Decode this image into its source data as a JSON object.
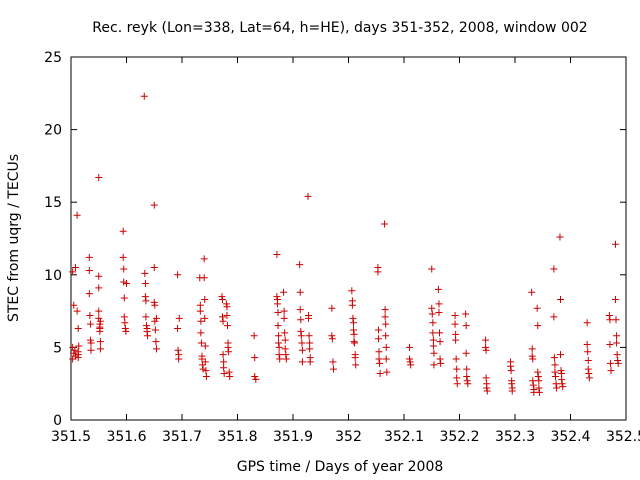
{
  "chart_data": {
    "type": "scatter",
    "title": "Rec. reyk (Lon=338, Lat=64, h=HE), days 351-352, 2008, window 002",
    "xlabel": "GPS time / Days of year 2008",
    "ylabel": "STEC from uqrg / TECUs",
    "xlim": [
      351.5,
      352.5
    ],
    "ylim": [
      0,
      25
    ],
    "x_ticks": [
      351.5,
      351.6,
      351.7,
      351.8,
      351.9,
      352.0,
      352.1,
      352.2,
      352.3,
      352.4,
      352.5
    ],
    "x_tick_labels": [
      "351.5",
      "351.6",
      "351.7",
      "351.8",
      "351.9",
      "352",
      "352.1",
      "352.2",
      "352.3",
      "352.4",
      "352.5"
    ],
    "y_ticks": [
      0,
      5,
      10,
      15,
      20,
      25
    ],
    "y_tick_labels": [
      "0",
      "5",
      "10",
      "15",
      "20",
      "25"
    ],
    "grid": false,
    "marker": "+",
    "color": "#cc0000",
    "x": [
      351.503,
      351.503,
      351.503,
      351.505,
      351.505,
      351.507,
      351.508,
      351.508,
      351.511,
      351.511,
      351.513,
      351.513,
      351.513,
      351.513,
      351.514,
      351.533,
      351.533,
      351.533,
      351.534,
      351.535,
      351.535,
      351.536,
      351.536,
      351.55,
      351.55,
      351.55,
      351.55,
      351.55,
      351.552,
      351.552,
      351.552,
      351.552,
      351.553,
      351.553,
      351.553,
      351.594,
      351.594,
      351.595,
      351.595,
      351.596,
      351.596,
      351.597,
      351.598,
      351.599,
      351.6,
      351.632,
      351.633,
      351.634,
      351.634,
      351.635,
      351.635,
      351.636,
      351.637,
      351.637,
      351.638,
      351.65,
      351.65,
      351.65,
      351.651,
      351.651,
      351.652,
      351.653,
      351.654,
      351.654,
      351.692,
      351.692,
      351.693,
      351.694,
      351.694,
      351.695,
      351.732,
      351.733,
      351.733,
      351.734,
      351.734,
      351.735,
      351.736,
      351.736,
      351.737,
      351.738,
      351.74,
      351.74,
      351.741,
      351.741,
      351.742,
      351.742,
      351.743,
      351.744,
      351.772,
      351.773,
      351.773,
      351.774,
      351.774,
      351.775,
      351.775,
      351.776,
      351.78,
      351.781,
      351.781,
      351.782,
      351.783,
      351.783,
      351.784,
      351.785,
      351.786,
      351.83,
      351.831,
      351.831,
      351.833,
      351.871,
      351.871,
      351.872,
      351.872,
      351.873,
      351.873,
      351.874,
      351.874,
      351.875,
      351.875,
      351.876,
      351.883,
      351.884,
      351.884,
      351.885,
      351.886,
      351.886,
      351.887,
      351.888,
      351.912,
      351.913,
      351.913,
      351.914,
      351.914,
      351.915,
      351.916,
      351.917,
      351.917,
      351.927,
      351.928,
      351.928,
      351.929,
      351.93,
      351.93,
      351.931,
      351.931,
      351.97,
      351.97,
      351.971,
      351.972,
      351.973,
      352.006,
      352.007,
      352.007,
      352.008,
      352.009,
      352.009,
      352.01,
      352.01,
      352.011,
      352.012,
      352.012,
      352.013,
      352.053,
      352.053,
      352.054,
      352.054,
      352.055,
      352.055,
      352.056,
      352.057,
      352.065,
      352.066,
      352.066,
      352.067,
      352.067,
      352.068,
      352.068,
      352.069,
      352.11,
      352.11,
      352.111,
      352.112,
      352.15,
      352.15,
      352.151,
      352.152,
      352.152,
      352.153,
      352.153,
      352.154,
      352.154,
      352.162,
      352.163,
      352.163,
      352.164,
      352.165,
      352.165,
      352.166,
      352.192,
      352.192,
      352.193,
      352.193,
      352.194,
      352.195,
      352.195,
      352.196,
      352.211,
      352.212,
      352.212,
      352.213,
      352.213,
      352.214,
      352.215,
      352.247,
      352.247,
      352.248,
      352.248,
      352.249,
      352.249,
      352.25,
      352.292,
      352.292,
      352.293,
      352.294,
      352.294,
      352.295,
      352.295,
      352.33,
      352.331,
      352.331,
      352.332,
      352.332,
      352.333,
      352.334,
      352.334,
      352.34,
      352.341,
      352.341,
      352.342,
      352.343,
      352.343,
      352.344,
      352.37,
      352.37,
      352.371,
      352.372,
      352.372,
      352.373,
      352.374,
      352.375,
      352.381,
      352.382,
      352.382,
      352.383,
      352.384,
      352.384,
      352.385,
      352.386,
      352.43,
      352.43,
      352.431,
      352.432,
      352.432,
      352.433,
      352.434,
      352.47,
      352.471,
      352.471,
      352.472,
      352.473,
      352.481,
      352.481,
      352.482,
      352.483,
      352.483,
      352.484,
      352.485,
      352.486
    ],
    "y": [
      10.2,
      5.0,
      4.2,
      7.9,
      4.6,
      4.8,
      4.4,
      10.5,
      14.1,
      7.5,
      6.3,
      4.7,
      4.5,
      4.3,
      5.1,
      11.2,
      10.3,
      8.7,
      7.2,
      6.6,
      5.5,
      5.3,
      4.8,
      16.7,
      9.9,
      9.1,
      7.5,
      7.0,
      6.6,
      6.3,
      6.1,
      6.4,
      6.8,
      5.4,
      4.9,
      13.0,
      11.2,
      10.4,
      9.5,
      8.4,
      7.1,
      6.7,
      6.3,
      6.1,
      9.4,
      22.3,
      10.1,
      9.4,
      8.5,
      8.2,
      7.1,
      6.5,
      6.1,
      6.3,
      5.8,
      14.8,
      10.5,
      8.1,
      7.9,
      6.8,
      6.2,
      5.4,
      4.9,
      7.0,
      10.0,
      6.3,
      4.8,
      4.5,
      4.2,
      7.0,
      9.8,
      7.9,
      7.5,
      6.8,
      6.0,
      5.3,
      4.4,
      4.2,
      3.8,
      3.5,
      11.1,
      9.8,
      8.3,
      7.0,
      5.1,
      4.0,
      3.4,
      3.0,
      8.5,
      8.3,
      7.1,
      6.8,
      4.5,
      4.0,
      3.6,
      3.2,
      8.0,
      7.8,
      7.2,
      6.5,
      5.3,
      5.0,
      4.7,
      3.3,
      3.0,
      5.8,
      4.3,
      3.0,
      2.8,
      11.4,
      8.5,
      8.3,
      8.0,
      7.4,
      6.5,
      5.8,
      5.3,
      5.0,
      4.5,
      4.2,
      8.8,
      7.5,
      7.0,
      6.0,
      5.5,
      4.9,
      4.5,
      4.2,
      10.7,
      8.8,
      7.6,
      6.9,
      6.1,
      5.8,
      5.3,
      4.8,
      4.0,
      15.4,
      7.2,
      7.0,
      5.8,
      5.3,
      4.9,
      4.3,
      4.0,
      7.7,
      5.8,
      5.6,
      4.0,
      3.5,
      8.9,
      8.2,
      7.9,
      7.0,
      6.7,
      6.2,
      5.9,
      5.4,
      5.3,
      4.5,
      4.3,
      3.8,
      10.5,
      10.2,
      6.2,
      5.6,
      4.7,
      4.2,
      3.9,
      3.2,
      13.5,
      7.6,
      7.1,
      6.6,
      5.8,
      5.0,
      4.2,
      3.3,
      5.0,
      4.2,
      4.0,
      3.8,
      10.4,
      7.7,
      7.3,
      6.7,
      6.0,
      5.5,
      5.1,
      4.6,
      3.8,
      9.0,
      8.0,
      7.4,
      6.0,
      5.4,
      4.2,
      3.9,
      7.2,
      6.6,
      5.9,
      5.5,
      4.2,
      3.5,
      2.9,
      2.5,
      7.3,
      6.5,
      4.6,
      3.5,
      3.0,
      2.7,
      2.5,
      5.5,
      5.0,
      4.8,
      2.9,
      2.5,
      2.2,
      2.0,
      4.0,
      3.7,
      3.4,
      2.7,
      2.5,
      2.2,
      2.0,
      8.8,
      4.9,
      4.4,
      4.2,
      2.7,
      2.4,
      2.1,
      1.9,
      7.7,
      6.5,
      3.3,
      3.0,
      2.7,
      2.2,
      1.9,
      10.4,
      7.1,
      4.3,
      3.8,
      3.3,
      3.0,
      2.5,
      2.2,
      12.6,
      8.3,
      4.5,
      3.4,
      3.2,
      2.8,
      2.5,
      2.3,
      6.7,
      5.2,
      4.7,
      4.1,
      3.5,
      3.2,
      2.9,
      7.2,
      6.9,
      5.2,
      3.9,
      3.4,
      12.1,
      8.3,
      6.9,
      5.8,
      5.3,
      4.5,
      4.1,
      3.9
    ]
  }
}
